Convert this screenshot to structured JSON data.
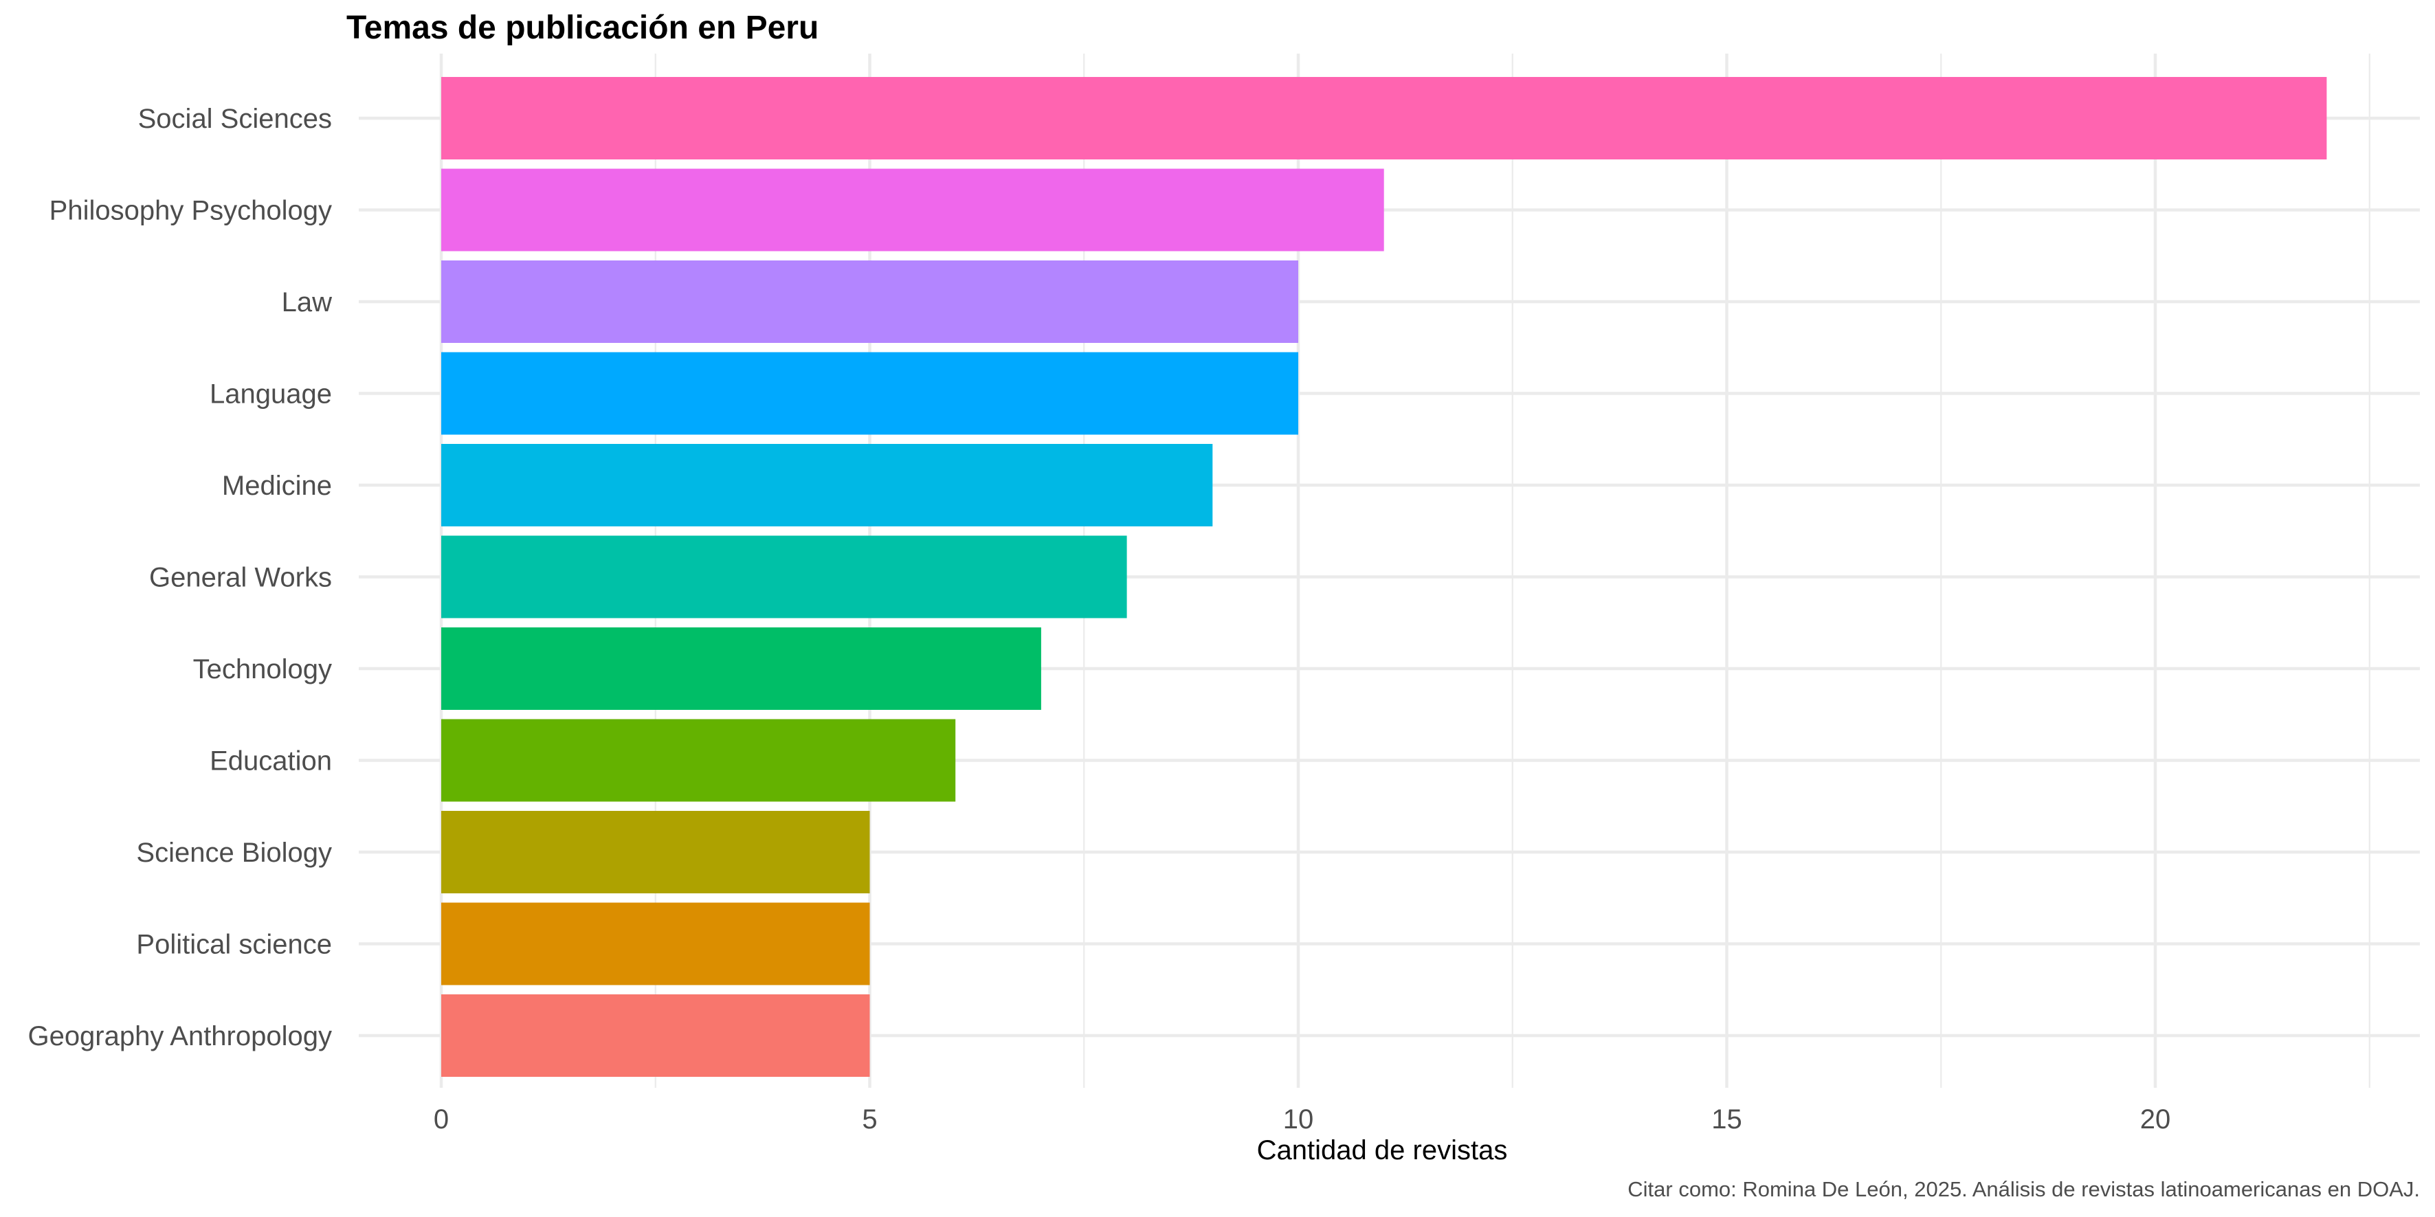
{
  "chart_data": {
    "type": "bar",
    "orientation": "horizontal",
    "title": "Temas de publicación en Peru",
    "xlabel": "Cantidad de revistas",
    "ylabel": "",
    "caption": "Citar como: Romina De León, 2025. Análisis de revistas latinoamericanas en DOAJ.",
    "xlim": [
      0,
      22.5
    ],
    "x_ticks": [
      0,
      5,
      10,
      15,
      20
    ],
    "grid": true,
    "legend": "none",
    "categories": [
      "Social Sciences",
      "Philosophy Psychology",
      "Law",
      "Language",
      "Medicine",
      "General Works",
      "Technology",
      "Education",
      "Science Biology",
      "Political science",
      "Geography Anthropology"
    ],
    "values": [
      22,
      11,
      10,
      10,
      9,
      8,
      7,
      6,
      5,
      5,
      5
    ],
    "colors": [
      "#FF64B0",
      "#EF67EB",
      "#B385FF",
      "#00A9FF",
      "#00B8E5",
      "#00C1A7",
      "#00BE67",
      "#64B200",
      "#AEA200",
      "#DB8E00",
      "#F8766D"
    ]
  }
}
